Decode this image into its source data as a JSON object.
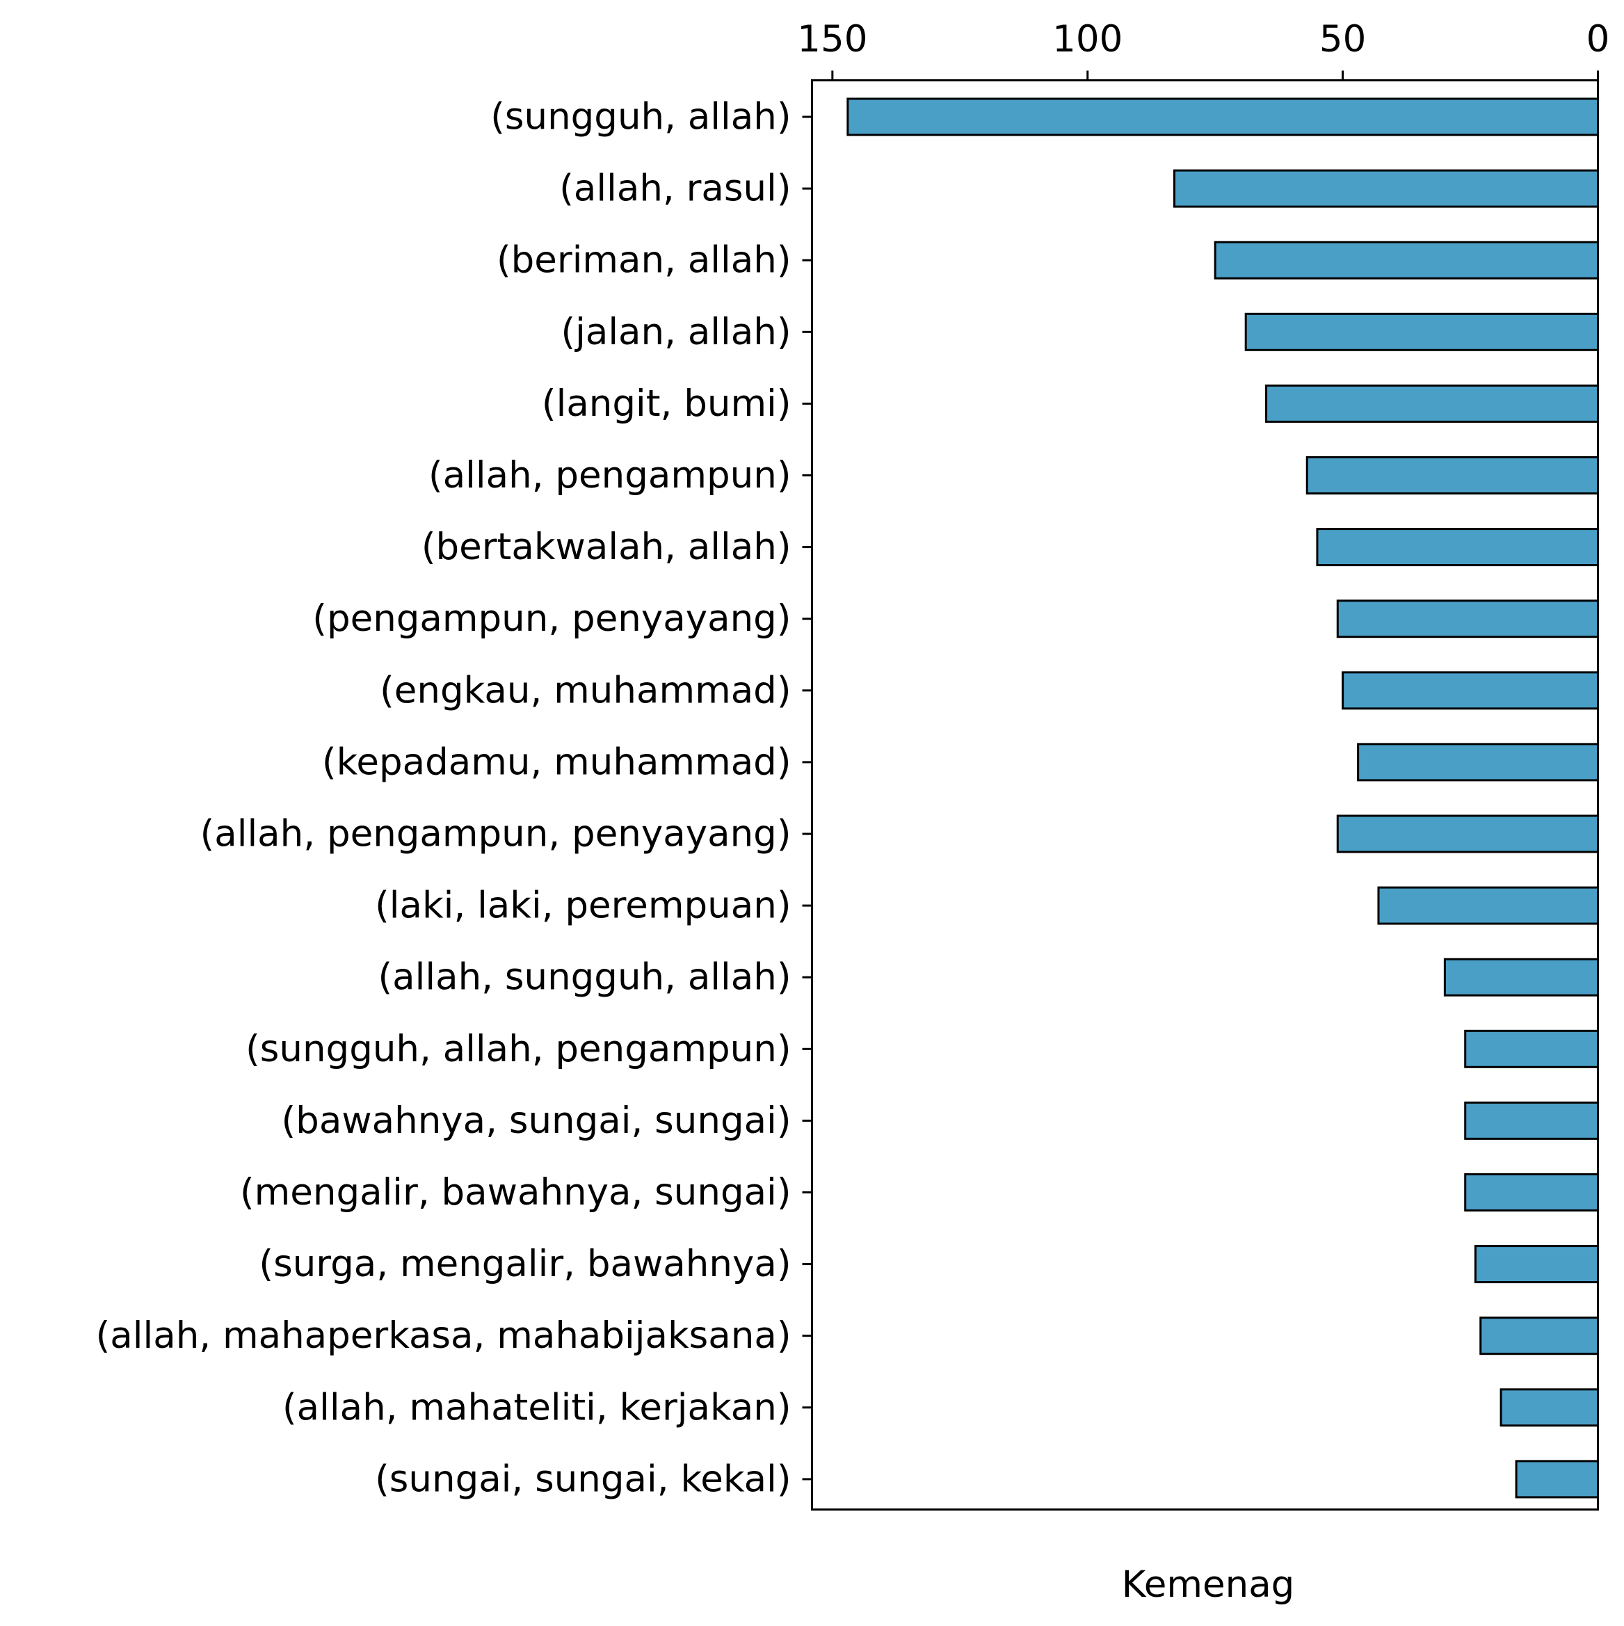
{
  "chart_data": {
    "type": "bar",
    "orientation": "horizontal",
    "x_axis_inverted": true,
    "x_tick_position": "top",
    "categories": [
      "(sungguh, allah)",
      "(allah, rasul)",
      "(beriman, allah)",
      "(jalan, allah)",
      "(langit, bumi)",
      "(allah, pengampun)",
      "(bertakwalah, allah)",
      "(pengampun, penyayang)",
      "(engkau, muhammad)",
      "(kepadamu, muhammad)",
      "(allah, pengampun, penyayang)",
      "(laki, laki, perempuan)",
      "(allah, sungguh, allah)",
      "(sungguh, allah, pengampun)",
      "(bawahnya, sungai, sungai)",
      "(mengalir, bawahnya, sungai)",
      "(surga, mengalir, bawahnya)",
      "(allah, mahaperkasa, mahabijaksana)",
      "(allah, mahateliti, kerjakan)",
      "(sungai, sungai, kekal)"
    ],
    "values": [
      147,
      83,
      75,
      69,
      65,
      57,
      55,
      51,
      50,
      47,
      51,
      43,
      30,
      26,
      26,
      26,
      24,
      23,
      19,
      16
    ],
    "xlabel": "Kemenag",
    "ylabel": "",
    "xlim": [
      154,
      0
    ],
    "xticks": [
      150,
      100,
      50,
      0
    ],
    "xtick_labels": [
      "150",
      "100",
      "50",
      "0"
    ],
    "bar_color": "#4a9fc7",
    "bar_edge_color": "#000000",
    "grid": false,
    "legend": "none"
  }
}
